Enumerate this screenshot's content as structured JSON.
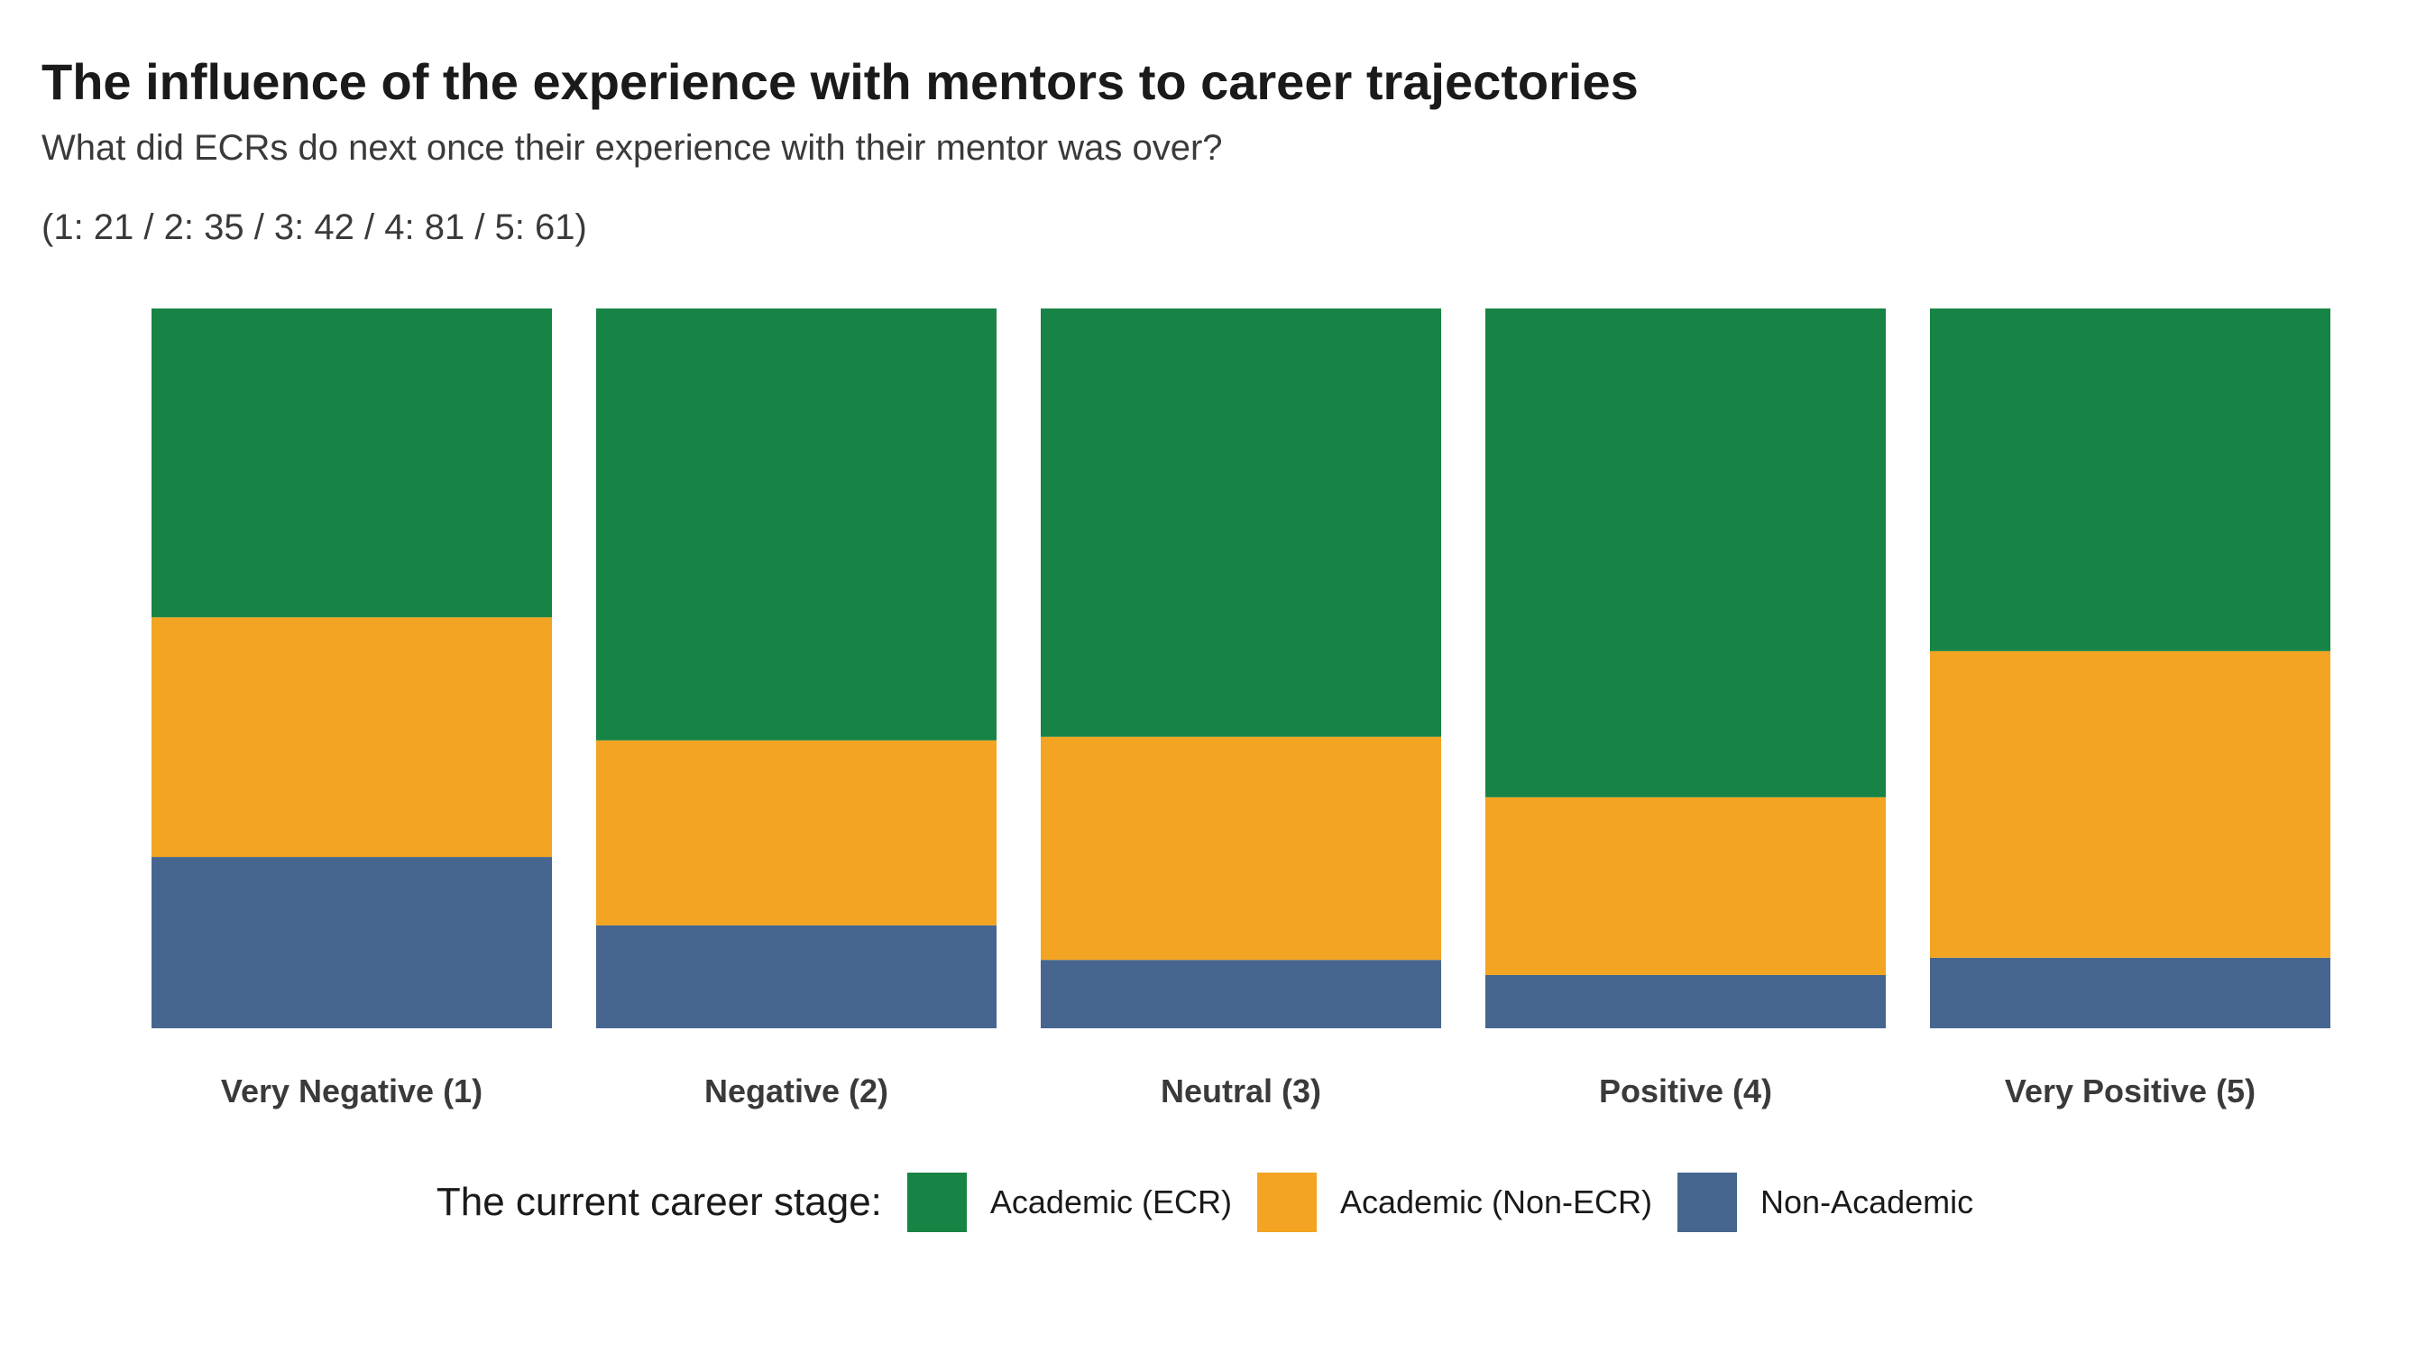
{
  "chart_data": {
    "type": "bar",
    "stacked": true,
    "normalized": true,
    "title": "The influence of the experience with mentors to career trajectories",
    "subtitle": "What did ECRs do next once their experience with their mentor was over?",
    "counts_caption": "(1: 21 / 2: 35 / 3: 42 / 4: 81 / 5: 61)",
    "categories": [
      "Very Negative (1)",
      "Negative (2)",
      "Neutral (3)",
      "Positive (4)",
      "Very Positive (5)"
    ],
    "ylim": [
      0,
      1
    ],
    "grid": false,
    "legend_position": "bottom",
    "legend_title": "The current career stage:",
    "series": [
      {
        "name": "Non-Academic",
        "color": "#46668F",
        "values": [
          0.238,
          0.143,
          0.095,
          0.074,
          0.098
        ]
      },
      {
        "name": "Academic (Non-ECR)",
        "color": "#F2A422",
        "values": [
          0.333,
          0.257,
          0.31,
          0.247,
          0.426
        ]
      },
      {
        "name": "Academic (ECR)",
        "color": "#178445",
        "values": [
          0.429,
          0.6,
          0.595,
          0.679,
          0.476
        ]
      }
    ],
    "legend_order": [
      "Academic (ECR)",
      "Academic (Non-ECR)",
      "Non-Academic"
    ]
  }
}
